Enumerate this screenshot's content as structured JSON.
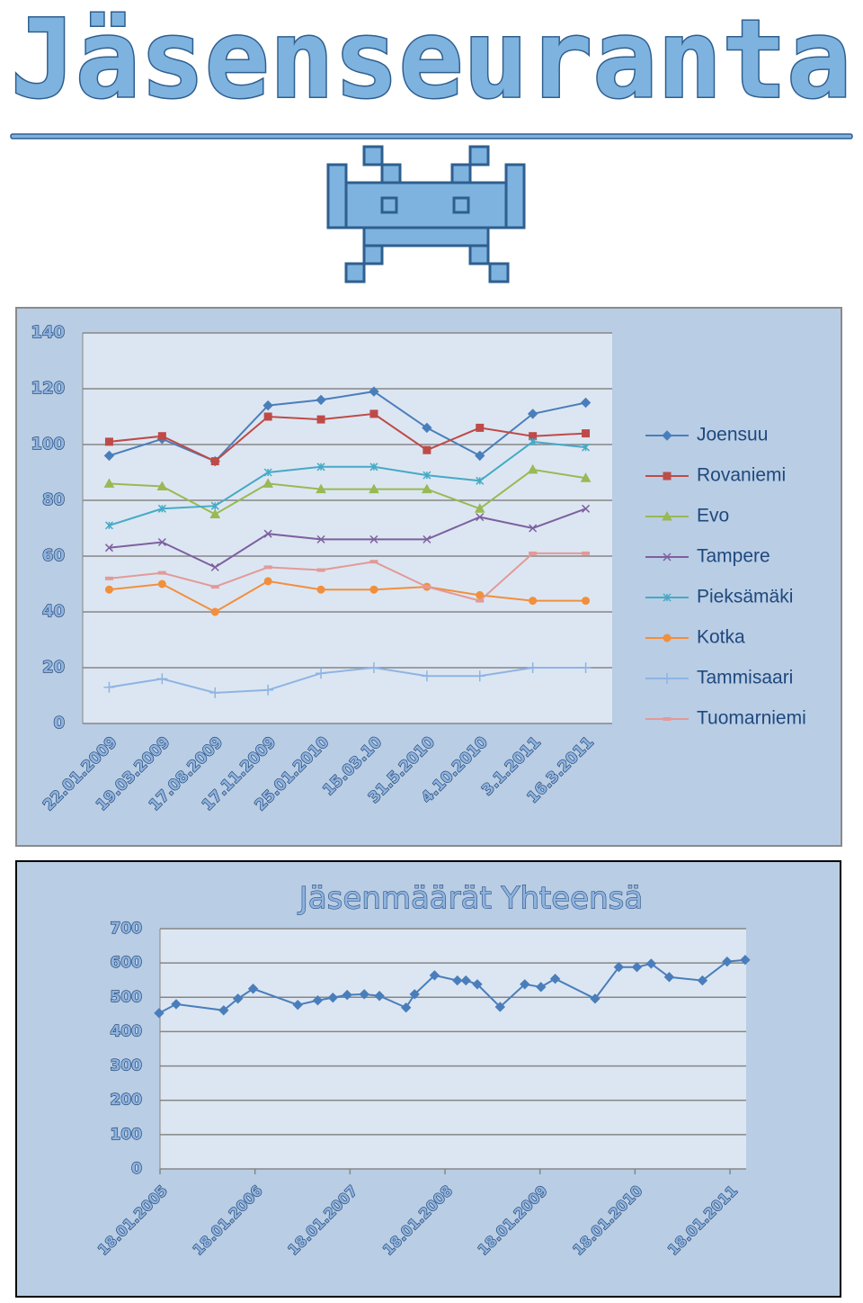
{
  "header": {
    "title": "Jäsenseuranta"
  },
  "chart_data": [
    {
      "type": "line",
      "categories": [
        "22.01.2009",
        "19.03.2009",
        "17.08.2009",
        "17.11.2009",
        "25.01.2010",
        "15.03.10",
        "31.5.2010",
        "4.10.2010",
        "3.1.2011",
        "16.3.2011"
      ],
      "series": [
        {
          "name": "Joensuu",
          "color": "#4a7ebb",
          "marker": "diamond",
          "values": [
            96,
            102,
            94,
            114,
            116,
            119,
            106,
            96,
            111,
            115
          ]
        },
        {
          "name": "Rovaniemi",
          "color": "#be4b48",
          "marker": "square",
          "values": [
            101,
            103,
            94,
            110,
            109,
            111,
            98,
            106,
            103,
            104
          ]
        },
        {
          "name": "Evo",
          "color": "#98b954",
          "marker": "triangle",
          "values": [
            86,
            85,
            75,
            86,
            84,
            84,
            84,
            77,
            91,
            88
          ]
        },
        {
          "name": "Tampere",
          "color": "#7d60a0",
          "marker": "x",
          "values": [
            63,
            65,
            56,
            68,
            66,
            66,
            66,
            74,
            70,
            77
          ]
        },
        {
          "name": "Pieksämäki",
          "color": "#46aac5",
          "marker": "star",
          "values": [
            71,
            77,
            78,
            90,
            92,
            92,
            89,
            87,
            101,
            99
          ]
        },
        {
          "name": "Kotka",
          "color": "#f28f3c",
          "marker": "circle",
          "values": [
            48,
            50,
            40,
            51,
            48,
            48,
            49,
            46,
            44,
            44
          ]
        },
        {
          "name": "Tammisaari",
          "color": "#8eb4e3",
          "marker": "plus",
          "values": [
            13,
            16,
            11,
            12,
            18,
            20,
            17,
            17,
            20,
            20
          ]
        },
        {
          "name": "Tuomarniemi",
          "color": "#e29a98",
          "marker": "dash",
          "values": [
            52,
            54,
            49,
            56,
            55,
            58,
            49,
            44,
            61,
            61
          ]
        }
      ],
      "ylim": [
        0,
        140
      ],
      "yticks": [
        0,
        20,
        40,
        60,
        80,
        100,
        120,
        140
      ],
      "grid": true,
      "legend": "right"
    },
    {
      "type": "line",
      "title": "Jäsenmäärät Yhteensä",
      "color": "#4a7ebb",
      "marker": "diamond",
      "x": [
        2005.04,
        2005.22,
        2005.72,
        2005.87,
        2006.03,
        2006.5,
        2006.71,
        2006.87,
        2007.02,
        2007.2,
        2007.36,
        2007.64,
        2007.73,
        2007.94,
        2008.18,
        2008.27,
        2008.39,
        2008.63,
        2008.89,
        2009.06,
        2009.21,
        2009.63,
        2009.88,
        2010.07,
        2010.22,
        2010.41,
        2010.76,
        2011.02,
        2011.21
      ],
      "values": [
        454,
        480,
        462,
        496,
        525,
        478,
        491,
        499,
        507,
        509,
        504,
        470,
        509,
        564,
        549,
        549,
        538,
        472,
        538,
        530,
        554,
        496,
        588,
        588,
        598,
        559,
        549,
        604,
        609
      ],
      "xlim": [
        2005.05,
        2011.22
      ],
      "xticks": [
        {
          "value": 2005.05,
          "label": "18.01.2005"
        },
        {
          "value": 2006.05,
          "label": "18.01.2006"
        },
        {
          "value": 2007.05,
          "label": "18.01.2007"
        },
        {
          "value": 2008.05,
          "label": "18.01.2008"
        },
        {
          "value": 2009.05,
          "label": "18.01.2009"
        },
        {
          "value": 2010.05,
          "label": "18.01.2010"
        },
        {
          "value": 2011.05,
          "label": "18.01.2011"
        }
      ],
      "ylim": [
        0,
        700
      ],
      "yticks": [
        0,
        100,
        200,
        300,
        400,
        500,
        600,
        700
      ],
      "grid": true
    }
  ]
}
